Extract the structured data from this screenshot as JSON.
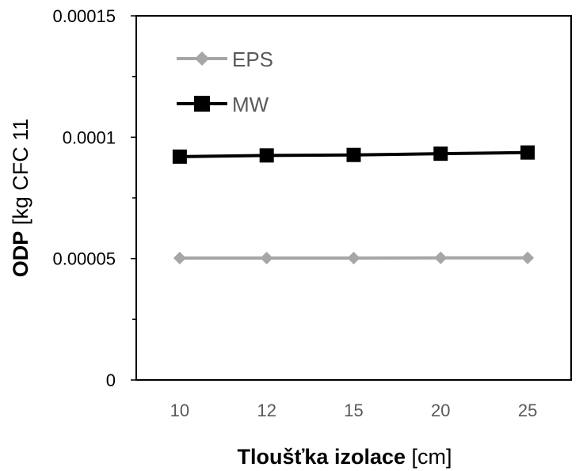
{
  "chart_data": {
    "type": "line",
    "categories": [
      "10",
      "12",
      "15",
      "20",
      "25"
    ],
    "series": [
      {
        "name": "EPS",
        "values": [
          5.02e-05,
          5.02e-05,
          5.02e-05,
          5.03e-05,
          5.03e-05
        ],
        "color": "#a6a6a6",
        "marker": "diamond"
      },
      {
        "name": "MW",
        "values": [
          9.2e-05,
          9.25e-05,
          9.27e-05,
          9.32e-05,
          9.37e-05
        ],
        "color": "#000000",
        "marker": "square"
      }
    ],
    "y_ticks": [
      "0",
      "0.00005",
      "0.0001",
      "0.00015"
    ],
    "ylim": [
      0,
      0.00015
    ],
    "xlabel_bold": "Tloušťka izolace",
    "xlabel_unit": " [cm]",
    "ylabel_bold": "ODP",
    "ylabel_unit": " [kg CFC 11",
    "grid": false,
    "legend": "top-left"
  }
}
